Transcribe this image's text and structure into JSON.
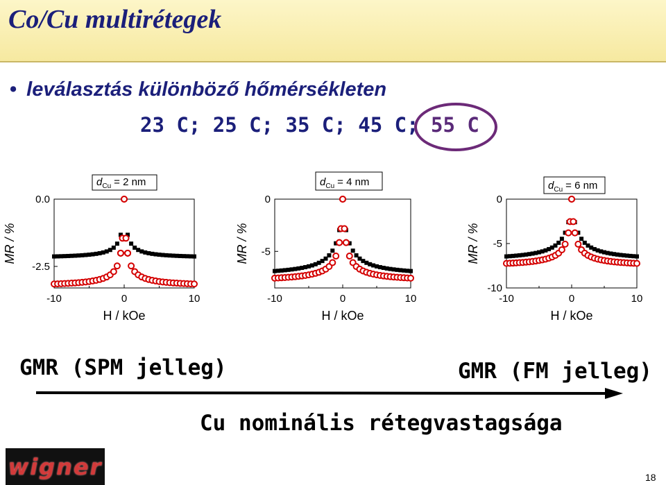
{
  "slide": {
    "title": "Co/Cu multirétegek",
    "bullet_symbol": "•",
    "bullet_text": "leválasztás különböző hőmérsékleten",
    "temps_plain": "23 C; 25 C; 35 C; 45 C;",
    "temps_highlight": "55 C",
    "caption_left": "GMR (SPM jelleg)",
    "caption_right": "GMR (FM jelleg)",
    "caption_axis": "Cu nominális rétegvastagsága",
    "page_number": "18",
    "logo_text": "wigner"
  },
  "colors": {
    "title": "#1b1f7a",
    "highlight_circle": "#6c2a78",
    "square_series": "#000000",
    "circle_series": "#d40000"
  },
  "chart_data": [
    {
      "type": "scatter",
      "label_d": "d",
      "label_sub": "Cu",
      "label_rest": "= 2 nm",
      "xlabel": "H / kOe",
      "ylabel": "MR  /  %",
      "xlim": [
        -10,
        10
      ],
      "ylim": [
        -3.3,
        0
      ],
      "xticks": [
        "-10",
        "0",
        "10"
      ],
      "xtick_values": [
        -10,
        0,
        10
      ],
      "yticks": [
        "0.0",
        "-2.5"
      ],
      "ytick_values": [
        0,
        -2.5
      ],
      "series": [
        {
          "marker": "square",
          "curve": {
            "A": 2.2,
            "B": 0.33
          }
        },
        {
          "marker": "circle",
          "curve": {
            "A": 3.25,
            "B": 0.31
          }
        }
      ]
    },
    {
      "type": "scatter",
      "label_d": "d",
      "label_sub": "Cu",
      "label_rest": "= 4 nm",
      "xlabel": "H / kOe",
      "ylabel": "MR  /  %",
      "xlim": [
        -10,
        10
      ],
      "ylim": [
        -8.5,
        0
      ],
      "xticks": [
        "-10",
        "0",
        "10"
      ],
      "xtick_values": [
        -10,
        0,
        10
      ],
      "yticks": [
        "0",
        "-5"
      ],
      "ytick_values": [
        0,
        -5
      ],
      "series": [
        {
          "marker": "square",
          "curve": {
            "A": 7.4,
            "B": 0.75
          }
        },
        {
          "marker": "circle",
          "curve": {
            "A": 7.9,
            "B": 0.45
          }
        }
      ]
    },
    {
      "type": "scatter",
      "label_d": "d",
      "label_sub": "Cu",
      "label_rest": "= 6 nm",
      "xlabel": "H / kOe",
      "ylabel": "MR  /  %",
      "xlim": [
        -10,
        10
      ],
      "ylim": [
        -10,
        0
      ],
      "xticks": [
        "-10",
        "0",
        "10"
      ],
      "xtick_values": [
        -10,
        0,
        10
      ],
      "yticks": [
        "0",
        "-5",
        "-10"
      ],
      "ytick_values": [
        0,
        -5,
        -10
      ],
      "series": [
        {
          "marker": "square",
          "curve": {
            "A": 7.0,
            "B": 0.85
          }
        },
        {
          "marker": "circle",
          "curve": {
            "A": 7.6,
            "B": 0.5
          }
        }
      ]
    }
  ]
}
